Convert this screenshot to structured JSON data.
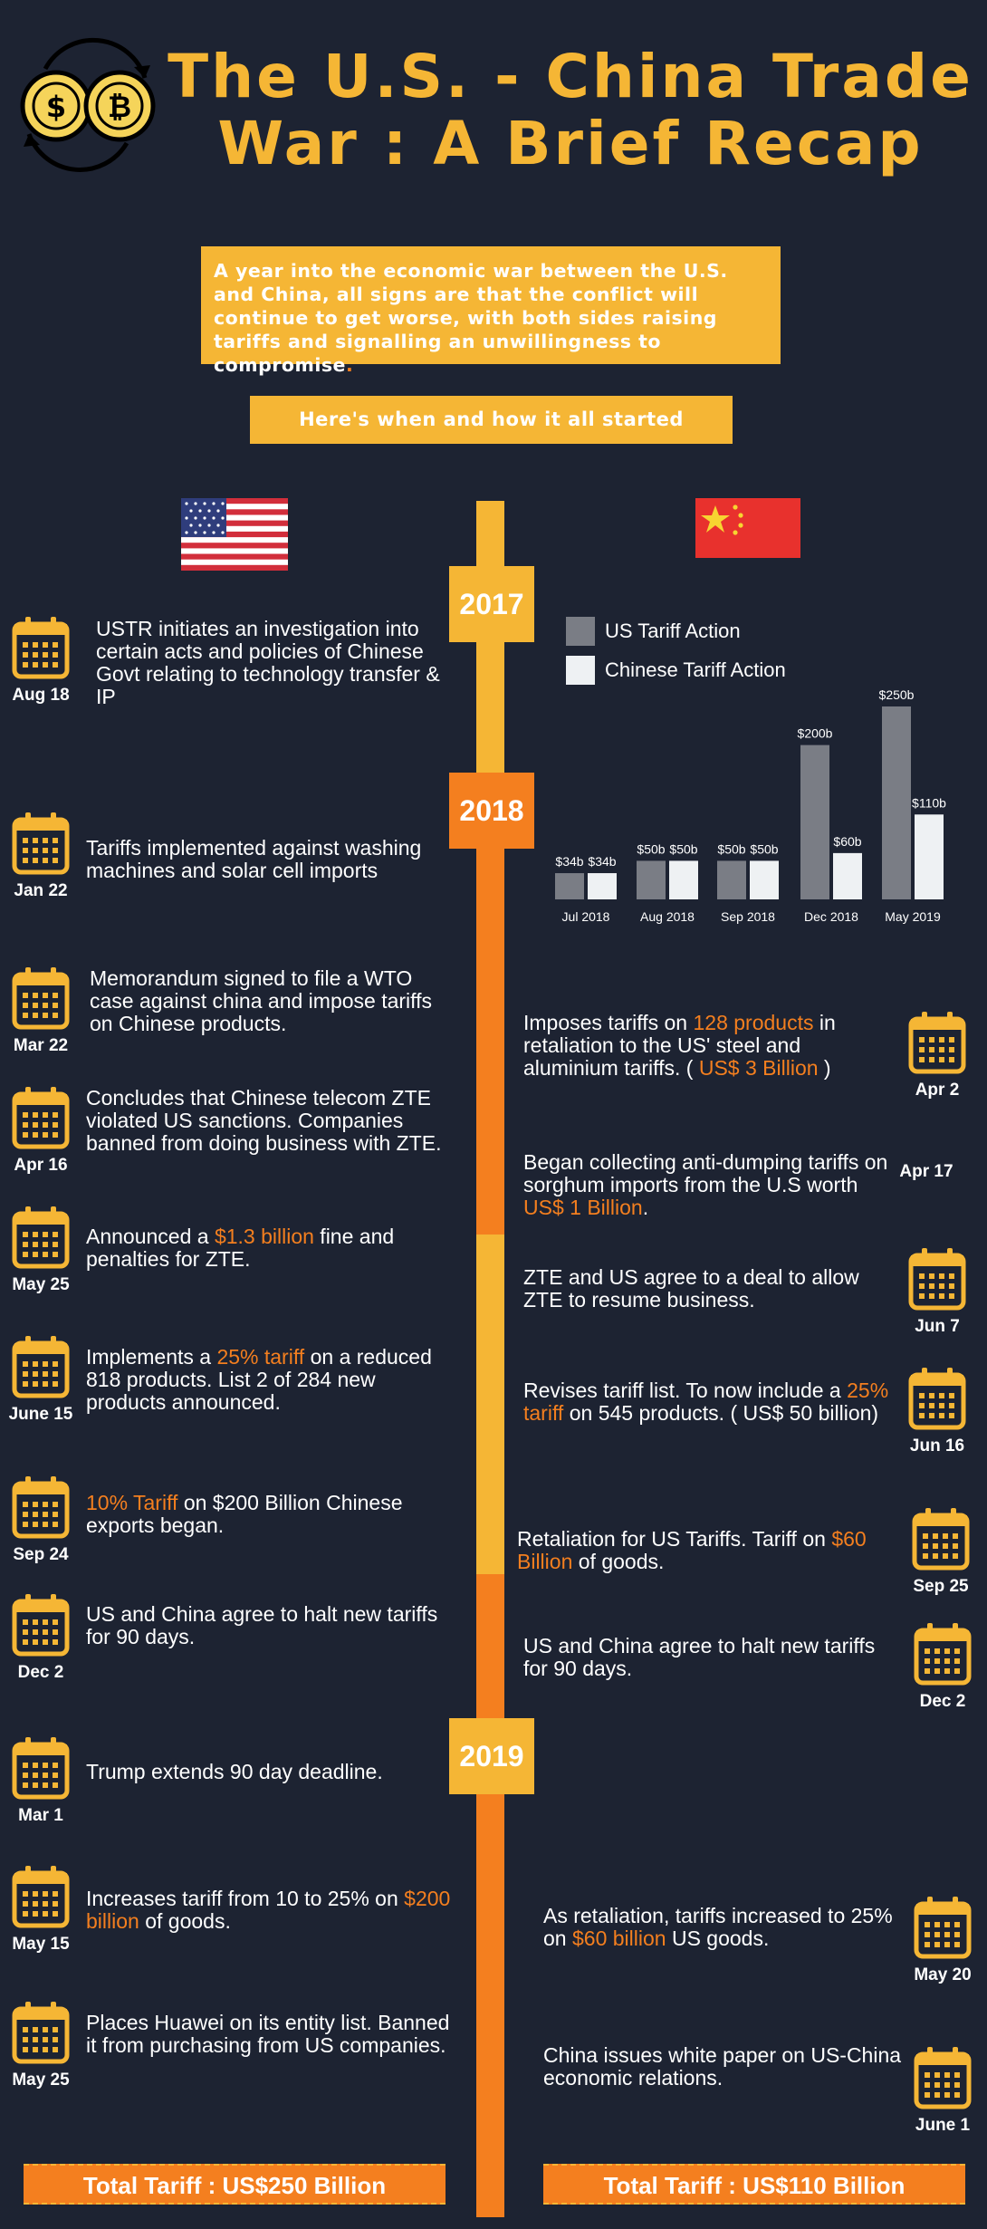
{
  "title": "The U.S. - China Trade War : A Brief Recap",
  "intro": "A year into the economic war between the U.S. and China, all signs are that the conflict will continue to get worse, with both sides raising tariffs and signalling an unwillingness to compromise",
  "intro_end": ".",
  "started": "Here's when and how it all started",
  "years": {
    "y2017": "2017",
    "y2018": "2018",
    "y2019": "2019"
  },
  "legend": {
    "us": "US Tariff Action",
    "cn": "Chinese Tariff Action"
  },
  "colors": {
    "accent_yellow": "#f5b635",
    "accent_orange": "#f47f1f",
    "background": "#1d2332",
    "us_bar": "#7a7d85",
    "cn_bar": "#eef1f3"
  },
  "chart_data": {
    "type": "bar",
    "categories": [
      "Jul 2018",
      "Aug 2018",
      "Sep 2018",
      "Dec 2018",
      "May 2019"
    ],
    "series": [
      {
        "name": "US Tariff Action",
        "values": [
          34,
          50,
          50,
          200,
          250
        ],
        "labels": [
          "$34b",
          "$50b",
          "$50b",
          "$200b",
          "$250b"
        ]
      },
      {
        "name": "Chinese Tariff Action",
        "values": [
          34,
          50,
          50,
          60,
          110
        ],
        "labels": [
          "$34b",
          "$50b",
          "$50b",
          "$60b",
          "$110b"
        ]
      }
    ],
    "ylim": [
      0,
      250
    ]
  },
  "us_events": [
    {
      "date": "Aug 18",
      "parts": [
        "USTR initiates an investigation into certain acts and policies of Chinese Govt relating to technology transfer & IP"
      ]
    },
    {
      "date": "Jan 22",
      "parts": [
        "Tariffs implemented against washing machines and solar cell imports"
      ]
    },
    {
      "date": "Mar 22",
      "parts": [
        "Memorandum signed to file a WTO case against china and impose tariffs on Chinese products."
      ]
    },
    {
      "date": "Apr 16",
      "parts": [
        "Concludes that Chinese telecom ZTE violated US sanctions. Companies banned from doing business with ZTE."
      ]
    },
    {
      "date": "May 25",
      "parts": [
        "Announced a ",
        "$1.3 billion",
        " fine and penalties for ZTE."
      ]
    },
    {
      "date": "June 15",
      "parts": [
        "Implements a ",
        "25% tariff",
        " on a reduced 818 products. List 2 of 284 new products announced."
      ]
    },
    {
      "date": "Sep 24",
      "parts": [
        "",
        "10% Tariff",
        " on $200 Billion Chinese exports began."
      ]
    },
    {
      "date": "Dec 2",
      "parts": [
        "US and China agree to halt new tariffs for 90 days."
      ]
    },
    {
      "date": "Mar 1",
      "parts": [
        "Trump extends 90 day deadline."
      ]
    },
    {
      "date": "May 15",
      "parts": [
        "Increases tariff from 10 to 25% on ",
        "$200 billion",
        " of goods."
      ]
    },
    {
      "date": "May 25",
      "parts": [
        "Places Huawei on its entity list. Banned it from purchasing from US companies."
      ]
    }
  ],
  "cn_events": [
    {
      "date": "Apr 2",
      "parts": [
        "Imposes tariffs on ",
        "128 products",
        " in retaliation to the US' steel and aluminium tariffs. ( ",
        "US$ 3 Billion",
        " )"
      ]
    },
    {
      "date": "Apr 17",
      "parts": [
        "Began collecting anti-dumping tariffs on sorghum imports from the U.S worth ",
        "US$ 1 Billion",
        "."
      ]
    },
    {
      "date": "Jun 7",
      "parts": [
        "ZTE and US agree to a deal to allow ZTE to resume business."
      ]
    },
    {
      "date": "Jun 16",
      "parts": [
        "Revises tariff list. To now include a ",
        "25% tariff",
        " on 545 products. ( US$ 50 billion)"
      ]
    },
    {
      "date": "Sep 25",
      "parts": [
        "Retaliation for US Tariffs. Tariff on ",
        "$60 Billion",
        " of goods."
      ]
    },
    {
      "date": "Dec 2",
      "parts": [
        "US and China agree to halt new tariffs for 90 days."
      ]
    },
    {
      "date": "May 20",
      "parts": [
        "As retaliation, tariffs increased to 25% on ",
        "$60 billion",
        " US goods."
      ]
    },
    {
      "date": "June 1",
      "parts": [
        "China issues white paper on US-China economic relations."
      ]
    }
  ],
  "totals": {
    "us": "Total Tariff : US$250 Billion",
    "cn": "Total Tariff : US$110 Billion"
  }
}
